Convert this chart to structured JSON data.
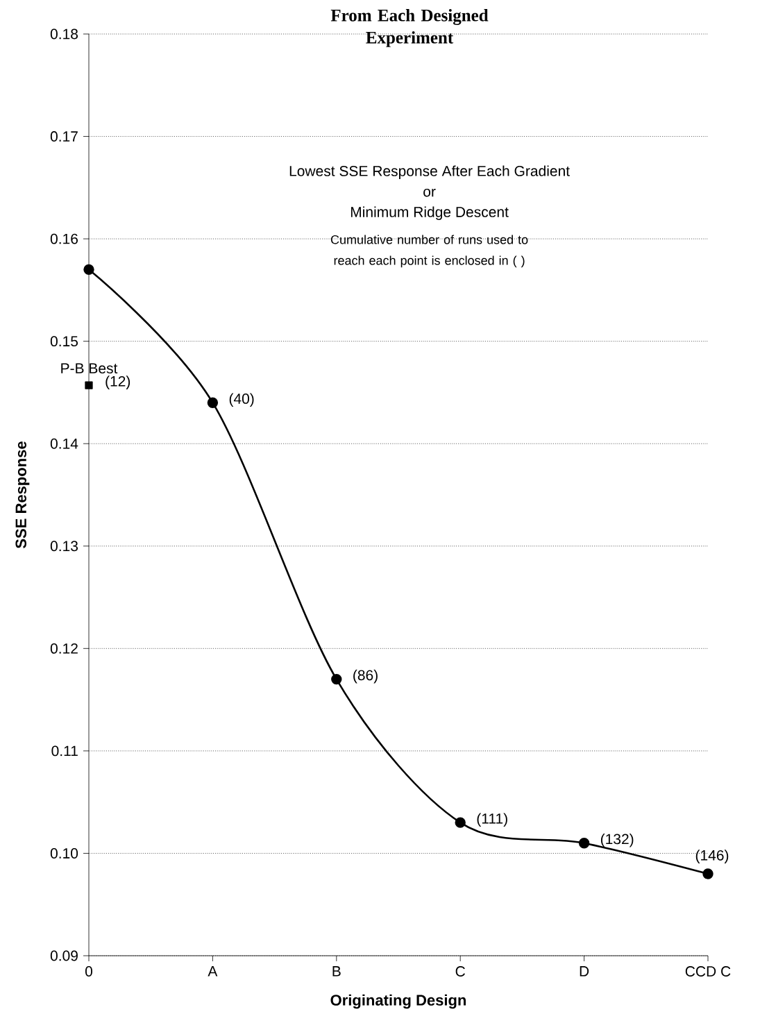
{
  "chart_data": {
    "type": "line",
    "title": "From Each Designed Experiment",
    "xlabel": "Originating Design",
    "ylabel": "SSE Response",
    "categories": [
      "0",
      "A",
      "B",
      "C",
      "D",
      "CCD C"
    ],
    "series": [
      {
        "color": "#000000",
        "marker": "circle",
        "line_style": "solid",
        "values": [
          0.157,
          0.144,
          0.117,
          0.103,
          0.101,
          0.098
        ]
      },
      {
        "type": "scatter",
        "color": "#000000",
        "marker": "square",
        "x": [
          "0"
        ],
        "values": [
          0.1457
        ]
      }
    ],
    "ylim": [
      0.09,
      0.18
    ],
    "yticks": [
      0.09,
      {
        "value": 0.1,
        "label": "0.10"
      },
      0.11,
      0.12,
      0.13,
      0.14,
      0.15,
      0.16,
      0.17,
      0.18
    ],
    "grid": "y",
    "annotations": [
      "Lowest SSE Response After Each Gradient",
      "or",
      "Minimum Ridge Descent",
      "Cumulative number of runs used to reach each point is enclosed in ( )",
      {
        "text": "P-B Best",
        "x": "0",
        "y": 0.1457
      },
      {
        "text": "(12)",
        "x": "0",
        "y": 0.1457
      },
      {
        "text": "(40)",
        "x": "A",
        "y": 0.144
      },
      {
        "text": "(86)",
        "x": "B",
        "y": 0.117
      },
      {
        "text": "(111)",
        "x": "C",
        "y": 0.103
      },
      {
        "text": "(132)",
        "x": "D",
        "y": 0.101
      },
      {
        "text": "(146)",
        "x": "CCD C",
        "y": 0.098
      }
    ]
  }
}
